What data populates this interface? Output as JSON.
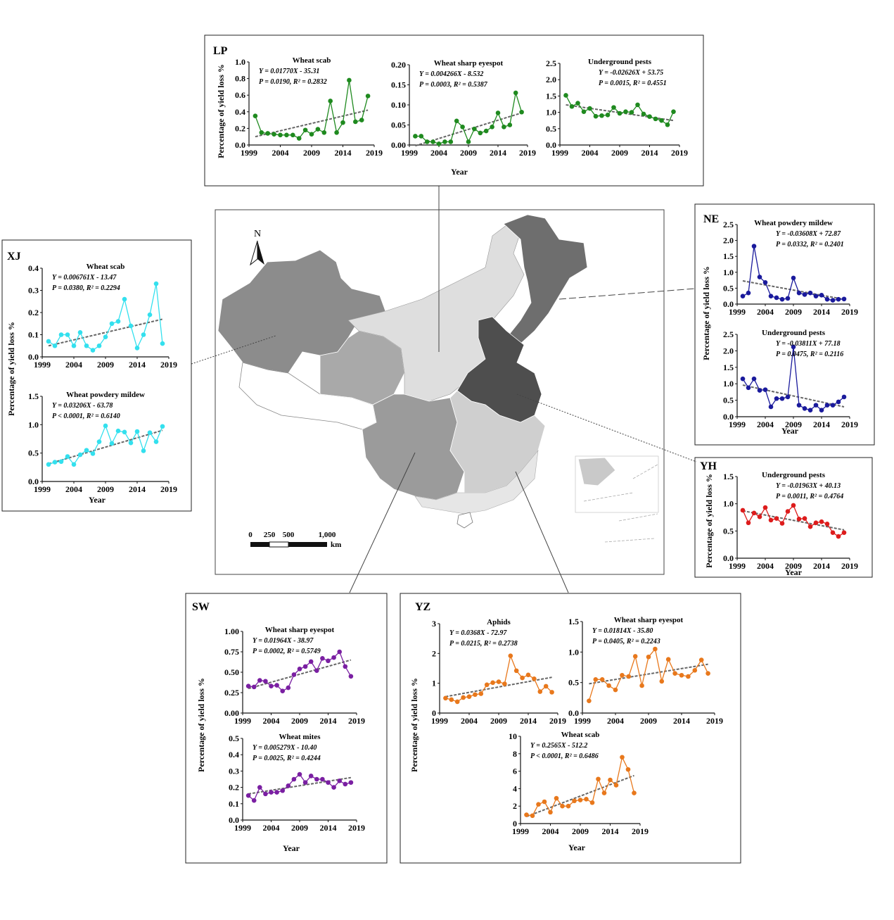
{
  "map": {
    "north_label": "N",
    "scale_labels": [
      "0",
      "250",
      "500",
      "1,000"
    ],
    "scale_unit": "km"
  },
  "common": {
    "ylabel": "Percentage of yield loss %",
    "xlabel": "Year",
    "x_ticks": [
      1999,
      2004,
      2009,
      2014,
      2019
    ]
  },
  "panels": [
    {
      "id": "LP",
      "label": "LP"
    },
    {
      "id": "XJ",
      "label": "XJ"
    },
    {
      "id": "NE",
      "label": "NE"
    },
    {
      "id": "YH",
      "label": "YH"
    },
    {
      "id": "SW",
      "label": "SW"
    },
    {
      "id": "YZ",
      "label": "YZ"
    }
  ],
  "colors": {
    "LP": "#1f8a1f",
    "XJ": "#33e0ee",
    "NE": "#1a1a9c",
    "YH": "#dd1c1c",
    "SW": "#7a1fa2",
    "YZ": "#e8781c",
    "trend": "#666666"
  },
  "chart_data": [
    {
      "id": "LP-wheat-scab",
      "region": "LP",
      "type": "line",
      "title": "Wheat scab",
      "eq": "Y = 0.01770X - 35.31",
      "stats": "P = 0.0190, R² = 0.2832",
      "ylim": [
        0,
        1.0
      ],
      "yticks": [
        0.0,
        0.2,
        0.4,
        0.6,
        0.8,
        1.0
      ],
      "x": [
        2000,
        2001,
        2002,
        2003,
        2004,
        2005,
        2006,
        2007,
        2008,
        2009,
        2010,
        2011,
        2012,
        2013,
        2014,
        2015,
        2016,
        2017,
        2018
      ],
      "y": [
        0.35,
        0.15,
        0.14,
        0.13,
        0.12,
        0.12,
        0.12,
        0.08,
        0.18,
        0.13,
        0.19,
        0.15,
        0.53,
        0.15,
        0.27,
        0.78,
        0.28,
        0.3,
        0.59
      ],
      "trend": [
        0.1,
        0.42
      ]
    },
    {
      "id": "LP-wheat-sharp-eyespot",
      "region": "LP",
      "type": "line",
      "title": "Wheat sharp eyespot",
      "eq": "Y = 0.004266X - 8.532",
      "stats": "P = 0.0003, R² = 0.5387",
      "ylim": [
        0,
        0.2
      ],
      "yticks": [
        0.0,
        0.05,
        0.1,
        0.15,
        0.2
      ],
      "x": [
        2000,
        2001,
        2002,
        2003,
        2004,
        2005,
        2006,
        2007,
        2008,
        2009,
        2010,
        2011,
        2012,
        2013,
        2014,
        2015,
        2016,
        2017,
        2018
      ],
      "y": [
        0.022,
        0.022,
        0.008,
        0.008,
        0.003,
        0.008,
        0.008,
        0.06,
        0.045,
        0.008,
        0.04,
        0.03,
        0.035,
        0.045,
        0.08,
        0.045,
        0.05,
        0.13,
        0.082
      ],
      "trend": [
        -0.002,
        0.08
      ]
    },
    {
      "id": "LP-underground-pests",
      "region": "LP",
      "type": "line",
      "title": "Underground pests",
      "eq": "Y = -0.02626X + 53.75",
      "stats": "P = 0.0015, R² = 0.4551",
      "ylim": [
        0,
        2.5
      ],
      "yticks": [
        0.0,
        0.5,
        1.0,
        1.5,
        2.0,
        2.5
      ],
      "x": [
        2000,
        2001,
        2002,
        2003,
        2004,
        2005,
        2006,
        2007,
        2008,
        2009,
        2010,
        2011,
        2012,
        2013,
        2014,
        2015,
        2016,
        2017,
        2018
      ],
      "y": [
        1.52,
        1.18,
        1.28,
        1.02,
        1.12,
        0.88,
        0.9,
        0.92,
        1.15,
        0.97,
        1.02,
        1.0,
        1.23,
        0.95,
        0.87,
        0.8,
        0.75,
        0.62,
        1.02
      ],
      "trend": [
        1.23,
        0.75
      ]
    },
    {
      "id": "XJ-wheat-scab",
      "region": "XJ",
      "type": "line",
      "title": "Wheat scab",
      "eq": "Y = 0.006761X - 13.47",
      "stats": "P = 0.0380, R² = 0.2294",
      "ylim": [
        0,
        0.4
      ],
      "yticks": [
        0.0,
        0.1,
        0.2,
        0.3,
        0.4
      ],
      "x": [
        2000,
        2001,
        2002,
        2003,
        2004,
        2005,
        2006,
        2007,
        2008,
        2009,
        2010,
        2011,
        2012,
        2013,
        2014,
        2015,
        2016,
        2017,
        2018
      ],
      "y": [
        0.07,
        0.05,
        0.1,
        0.1,
        0.05,
        0.11,
        0.05,
        0.03,
        0.05,
        0.09,
        0.15,
        0.16,
        0.26,
        0.14,
        0.04,
        0.1,
        0.19,
        0.33,
        0.06
      ],
      "trend": [
        0.05,
        0.17
      ]
    },
    {
      "id": "XJ-wheat-powdery-mildew",
      "region": "XJ",
      "type": "line",
      "title": "Wheat powdery mildew",
      "eq": "Y = 0.03206X - 63.78",
      "stats": "P < 0.0001, R² = 0.6140",
      "ylim": [
        0,
        1.5
      ],
      "yticks": [
        0.0,
        0.5,
        1.0,
        1.5
      ],
      "x": [
        2000,
        2001,
        2002,
        2003,
        2004,
        2005,
        2006,
        2007,
        2008,
        2009,
        2010,
        2011,
        2012,
        2013,
        2014,
        2015,
        2016,
        2017,
        2018
      ],
      "y": [
        0.3,
        0.34,
        0.35,
        0.44,
        0.3,
        0.47,
        0.55,
        0.49,
        0.7,
        0.98,
        0.67,
        0.89,
        0.87,
        0.68,
        0.88,
        0.54,
        0.86,
        0.7,
        0.97
      ],
      "trend": [
        0.31,
        0.9
      ]
    },
    {
      "id": "NE-wheat-powdery-mildew",
      "region": "NE",
      "type": "line",
      "title": "Wheat powdery mildew",
      "eq": "Y = -0.03608X + 72.87",
      "stats": "P = 0.0332, R² = 0.2401",
      "ylim": [
        0,
        2.5
      ],
      "yticks": [
        0.0,
        0.5,
        1.0,
        1.5,
        2.0,
        2.5
      ],
      "x": [
        2000,
        2001,
        2002,
        2003,
        2004,
        2005,
        2006,
        2007,
        2008,
        2009,
        2010,
        2011,
        2012,
        2013,
        2014,
        2015,
        2016,
        2017,
        2018
      ],
      "y": [
        0.25,
        0.35,
        1.82,
        0.85,
        0.68,
        0.25,
        0.2,
        0.15,
        0.18,
        0.82,
        0.35,
        0.3,
        0.35,
        0.25,
        0.28,
        0.15,
        0.12,
        0.15,
        0.16
      ],
      "trend": [
        0.73,
        0.15
      ]
    },
    {
      "id": "NE-underground-pests",
      "region": "NE",
      "type": "line",
      "title": "Underground pests",
      "eq": "Y = -0.03811X + 77.18",
      "stats": "P = 0.0475, R² = 0.2116",
      "ylim": [
        0,
        2.5
      ],
      "yticks": [
        0.0,
        0.5,
        1.0,
        1.5,
        2.0,
        2.5
      ],
      "x": [
        2000,
        2001,
        2002,
        2003,
        2004,
        2005,
        2006,
        2007,
        2008,
        2009,
        2010,
        2011,
        2012,
        2013,
        2014,
        2015,
        2016,
        2017,
        2018
      ],
      "y": [
        1.15,
        0.88,
        1.15,
        0.8,
        0.82,
        0.3,
        0.55,
        0.55,
        0.6,
        2.12,
        0.35,
        0.25,
        0.2,
        0.35,
        0.2,
        0.35,
        0.35,
        0.45,
        0.6
      ],
      "trend": [
        0.96,
        0.3
      ]
    },
    {
      "id": "YH-underground-pests",
      "region": "YH",
      "type": "line",
      "title": "Underground pests",
      "eq": "Y = -0.01963X + 40.13",
      "stats": "P = 0.0011, R² = 0.4764",
      "ylim": [
        0,
        1.5
      ],
      "yticks": [
        0.0,
        0.5,
        1.0,
        1.5
      ],
      "x": [
        2000,
        2001,
        2002,
        2003,
        2004,
        2005,
        2006,
        2007,
        2008,
        2009,
        2010,
        2011,
        2012,
        2013,
        2014,
        2015,
        2016,
        2017,
        2018
      ],
      "y": [
        0.88,
        0.65,
        0.83,
        0.76,
        0.93,
        0.7,
        0.73,
        0.64,
        0.86,
        0.97,
        0.72,
        0.73,
        0.58,
        0.65,
        0.67,
        0.63,
        0.47,
        0.4,
        0.47
      ],
      "trend": [
        0.87,
        0.52
      ]
    },
    {
      "id": "SW-wheat-sharp-eyespot",
      "region": "SW",
      "type": "line",
      "title": "Wheat sharp eyespot",
      "eq": "Y = 0.01964X - 38.97",
      "stats": "P = 0.0002, R² = 0.5749",
      "ylim": [
        0,
        1.0
      ],
      "yticks": [
        0.0,
        0.25,
        0.5,
        0.75,
        1.0
      ],
      "x": [
        2000,
        2001,
        2002,
        2003,
        2004,
        2005,
        2006,
        2007,
        2008,
        2009,
        2010,
        2011,
        2012,
        2013,
        2014,
        2015,
        2016,
        2017,
        2018
      ],
      "y": [
        0.33,
        0.32,
        0.4,
        0.39,
        0.33,
        0.34,
        0.27,
        0.31,
        0.47,
        0.54,
        0.57,
        0.63,
        0.52,
        0.67,
        0.64,
        0.68,
        0.75,
        0.57,
        0.45
      ],
      "trend": [
        0.3,
        0.65
      ]
    },
    {
      "id": "SW-wheat-mites",
      "region": "SW",
      "type": "line",
      "title": "Wheat mites",
      "eq": "Y = 0.005279X - 10.40",
      "stats": "P = 0.0025, R² = 0.4244",
      "ylim": [
        0,
        0.5
      ],
      "yticks": [
        0.0,
        0.1,
        0.2,
        0.3,
        0.4,
        0.5
      ],
      "x": [
        2000,
        2001,
        2002,
        2003,
        2004,
        2005,
        2006,
        2007,
        2008,
        2009,
        2010,
        2011,
        2012,
        2013,
        2014,
        2015,
        2016,
        2017,
        2018
      ],
      "y": [
        0.15,
        0.12,
        0.2,
        0.16,
        0.17,
        0.17,
        0.18,
        0.21,
        0.25,
        0.28,
        0.23,
        0.27,
        0.25,
        0.25,
        0.23,
        0.2,
        0.24,
        0.22,
        0.23
      ],
      "trend": [
        0.16,
        0.26
      ]
    },
    {
      "id": "YZ-aphids",
      "region": "YZ",
      "type": "line",
      "title": "Aphids",
      "eq": "Y = 0.0368X - 72.97",
      "stats": "P = 0.0215, R² = 0.2738",
      "ylim": [
        0,
        3
      ],
      "yticks": [
        0,
        1,
        2,
        3
      ],
      "x": [
        2000,
        2001,
        2002,
        2003,
        2004,
        2005,
        2006,
        2007,
        2008,
        2009,
        2010,
        2011,
        2012,
        2013,
        2014,
        2015,
        2016,
        2017,
        2018
      ],
      "y": [
        0.5,
        0.45,
        0.38,
        0.52,
        0.55,
        0.62,
        0.65,
        0.95,
        1.02,
        1.05,
        0.98,
        1.92,
        1.42,
        1.18,
        1.28,
        1.15,
        0.72,
        0.9,
        0.7
      ],
      "trend": [
        0.55,
        1.2
      ]
    },
    {
      "id": "YZ-wheat-sharp-eyespot",
      "region": "YZ",
      "type": "line",
      "title": "Wheat sharp eyespot",
      "eq": "Y = 0.01814X - 35.80",
      "stats": "P = 0.0405, R² = 0.2243",
      "ylim": [
        0,
        1.5
      ],
      "yticks": [
        0.0,
        0.5,
        1.0,
        1.5
      ],
      "x": [
        2000,
        2001,
        2002,
        2003,
        2004,
        2005,
        2006,
        2007,
        2008,
        2009,
        2010,
        2011,
        2012,
        2013,
        2014,
        2015,
        2016,
        2017,
        2018
      ],
      "y": [
        0.2,
        0.55,
        0.55,
        0.45,
        0.38,
        0.62,
        0.6,
        0.93,
        0.45,
        0.92,
        1.05,
        0.52,
        0.88,
        0.65,
        0.62,
        0.6,
        0.7,
        0.87,
        0.65
      ],
      "trend": [
        0.48,
        0.8
      ]
    },
    {
      "id": "YZ-wheat-scab",
      "region": "YZ",
      "type": "line",
      "title": "Wheat scab",
      "eq": "Y = 0.2565X - 512.2",
      "stats": "P < 0.0001, R² = 0.6486",
      "ylim": [
        0,
        10
      ],
      "yticks": [
        0,
        2,
        4,
        6,
        8,
        10
      ],
      "x": [
        2000,
        2001,
        2002,
        2003,
        2004,
        2005,
        2006,
        2007,
        2008,
        2009,
        2010,
        2011,
        2012,
        2013,
        2014,
        2015,
        2016,
        2017,
        2018
      ],
      "y": [
        1.0,
        0.9,
        2.2,
        2.5,
        1.3,
        2.9,
        2.0,
        2.0,
        2.6,
        2.7,
        2.8,
        2.4,
        5.1,
        3.5,
        5.0,
        4.4,
        7.6,
        6.2,
        3.5
      ],
      "trend": [
        0.8,
        5.5
      ]
    }
  ]
}
